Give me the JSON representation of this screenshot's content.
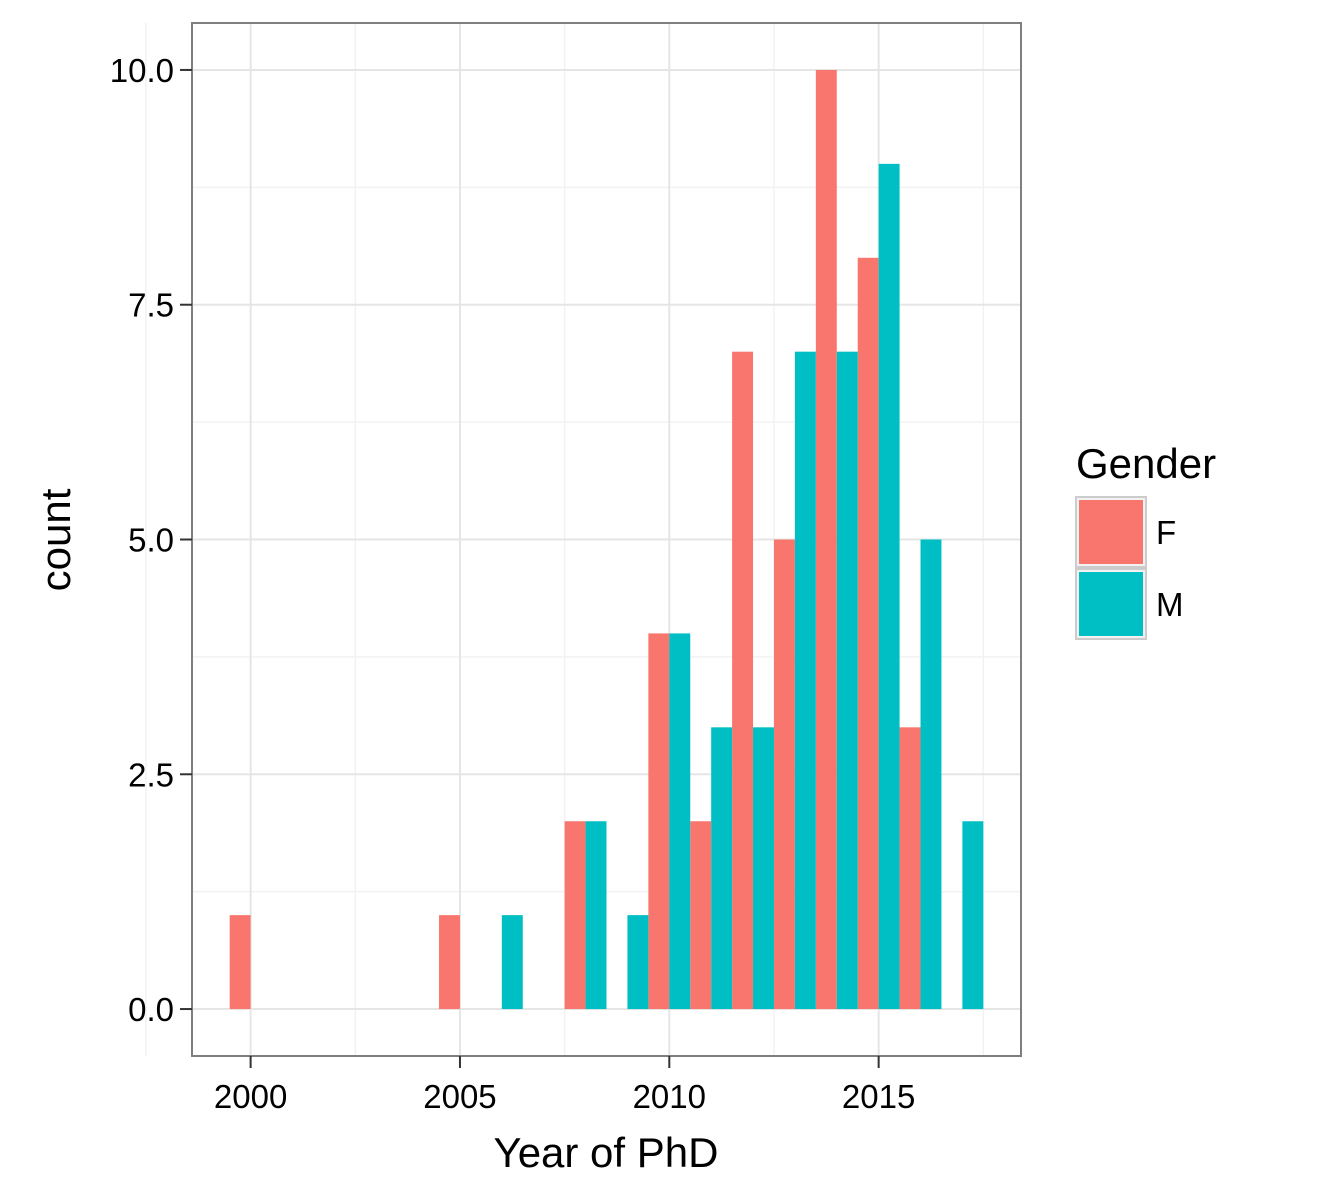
{
  "chart_data": {
    "type": "bar",
    "title": "",
    "xlabel": "Year of PhD",
    "ylabel": "count",
    "xlim": [
      1998.6,
      2018.4
    ],
    "ylim": [
      -0.5,
      10.5
    ],
    "x_ticks": [
      2000,
      2005,
      2010,
      2015
    ],
    "y_ticks": [
      0.0,
      2.5,
      5.0,
      7.5,
      10.0
    ],
    "y_tick_labels": [
      "0.0",
      "2.5",
      "5.0",
      "7.5",
      "10.0"
    ],
    "x_tick_labels": [
      "2000",
      "2005",
      "2010",
      "2015"
    ],
    "bar_width": 1,
    "grid": true,
    "legend": {
      "title": "Gender",
      "position": "right"
    },
    "series": [
      {
        "name": "F",
        "color": "#F8766D",
        "points": [
          {
            "x": 2000,
            "y": 1
          },
          {
            "x": 2005,
            "y": 1
          },
          {
            "x": 2008,
            "y": 2
          },
          {
            "x": 2010,
            "y": 4
          },
          {
            "x": 2011,
            "y": 2
          },
          {
            "x": 2012,
            "y": 7
          },
          {
            "x": 2013,
            "y": 5
          },
          {
            "x": 2014,
            "y": 10
          },
          {
            "x": 2015,
            "y": 8
          },
          {
            "x": 2016,
            "y": 3
          }
        ]
      },
      {
        "name": "M",
        "color": "#00BFC4",
        "points": [
          {
            "x": 2006,
            "y": 1
          },
          {
            "x": 2008,
            "y": 2
          },
          {
            "x": 2009,
            "y": 1
          },
          {
            "x": 2010,
            "y": 4
          },
          {
            "x": 2011,
            "y": 3
          },
          {
            "x": 2012,
            "y": 3
          },
          {
            "x": 2013,
            "y": 7
          },
          {
            "x": 2014,
            "y": 7
          },
          {
            "x": 2015,
            "y": 9
          },
          {
            "x": 2016,
            "y": 5
          },
          {
            "x": 2017,
            "y": 2
          }
        ]
      }
    ]
  }
}
